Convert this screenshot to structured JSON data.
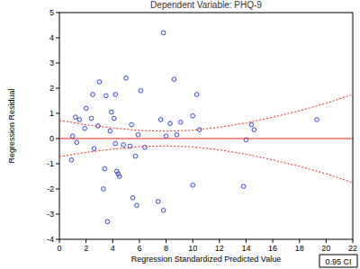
{
  "chart_data": {
    "type": "scatter",
    "title": "Dependent Variable:  PHQ-9",
    "x_label": "Regression Standardized Predicted Value",
    "y_label": "Regression Residual",
    "xlim": [
      0,
      22
    ],
    "ylim": [
      -4,
      5
    ],
    "xticks": [
      0,
      2,
      4,
      6,
      8,
      10,
      12,
      14,
      16,
      18,
      20,
      22
    ],
    "yticks": [
      -4,
      -3,
      -2,
      -1,
      0,
      1,
      2,
      3,
      4,
      5
    ],
    "grid": false,
    "legend": "bottom-right",
    "series": [
      {
        "type": "scatter",
        "color": "#1f2fd6",
        "marker": "open-circle",
        "x": [
          0.9,
          1.0,
          1.2,
          1.3,
          1.5,
          1.9,
          2.0,
          2.4,
          2.5,
          2.6,
          2.9,
          3.0,
          3.3,
          3.4,
          3.5,
          3.6,
          3.8,
          3.9,
          4.1,
          4.2,
          4.2,
          4.3,
          4.4,
          4.5,
          4.8,
          5.0,
          5.3,
          5.4,
          5.5,
          5.8,
          5.7,
          5.9,
          6.1,
          6.4,
          7.4,
          7.6,
          7.8,
          7.8,
          8.0,
          8.3,
          8.6,
          8.8,
          9.1,
          10.0,
          10.0,
          10.3,
          10.5,
          13.8,
          14.0,
          14.4,
          14.6,
          19.3
        ],
        "values": [
          -0.85,
          0.1,
          0.85,
          -0.15,
          0.75,
          0.4,
          1.2,
          0.8,
          1.75,
          -0.4,
          0.5,
          2.25,
          -2.0,
          -1.2,
          1.7,
          -3.3,
          0.3,
          1.05,
          0.8,
          1.75,
          -0.2,
          -1.3,
          -1.4,
          -1.5,
          -0.25,
          2.4,
          -0.3,
          0.55,
          -2.35,
          -2.65,
          -0.7,
          0.15,
          1.9,
          -0.35,
          -2.5,
          0.75,
          4.2,
          -2.85,
          0.1,
          0.6,
          2.35,
          0.15,
          0.65,
          -1.85,
          0.9,
          1.75,
          0.35,
          -1.9,
          -0.05,
          0.55,
          0.35,
          0.75
        ]
      },
      {
        "name": "0.95 CI",
        "type": "line",
        "color": "#e8271f",
        "line_style": "dotted",
        "x": [
          0,
          2,
          4,
          6,
          8,
          10,
          12,
          14,
          16,
          18,
          20,
          22
        ],
        "values": [
          0.72,
          0.55,
          0.42,
          0.32,
          0.29,
          0.33,
          0.45,
          0.62,
          0.85,
          1.1,
          1.4,
          1.75
        ]
      },
      {
        "type": "line",
        "color": "#e8271f",
        "line_style": "dotted",
        "x": [
          0,
          2,
          4,
          6,
          8,
          10,
          12,
          14,
          16,
          18,
          20,
          22
        ],
        "values": [
          -0.72,
          -0.55,
          -0.42,
          -0.32,
          -0.29,
          -0.33,
          -0.45,
          -0.62,
          -0.85,
          -1.1,
          -1.4,
          -1.75
        ]
      },
      {
        "type": "line",
        "color": "#e8271f",
        "line_style": "solid",
        "x": [
          0,
          22
        ],
        "values": [
          0,
          0
        ]
      }
    ]
  }
}
